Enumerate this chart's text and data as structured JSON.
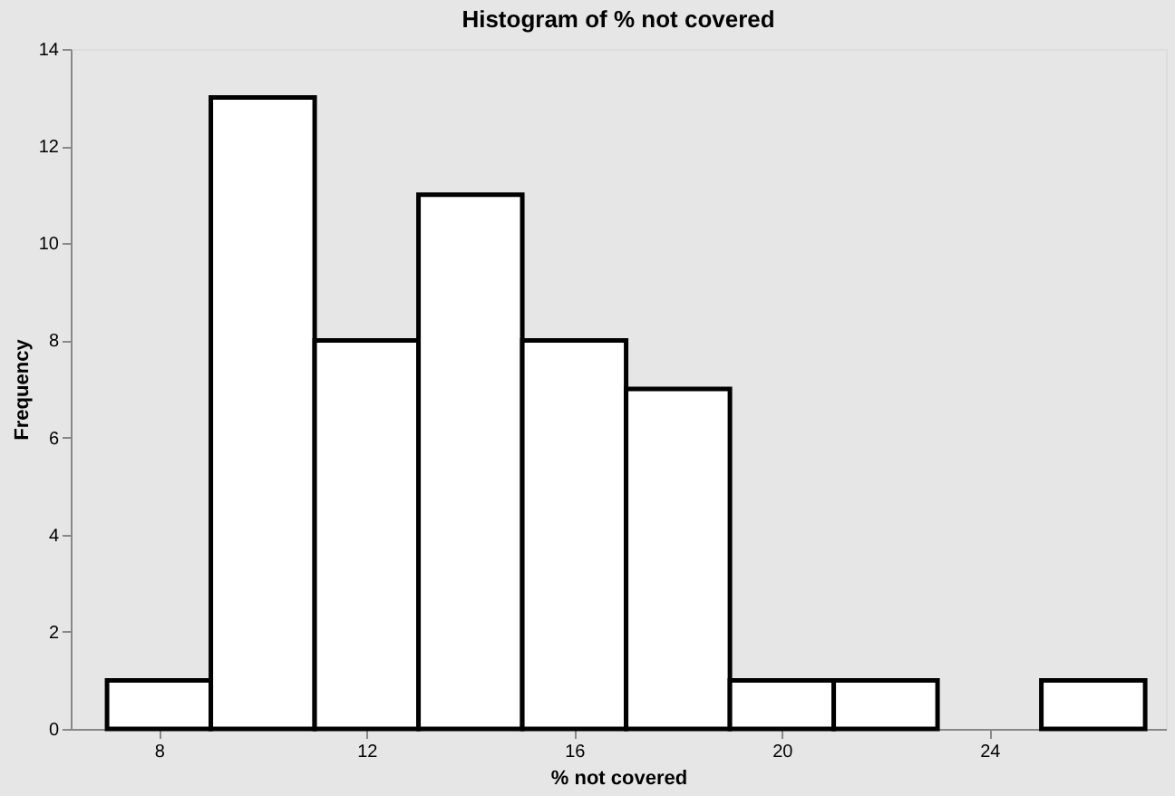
{
  "chart_data": {
    "type": "histogram",
    "title": "Histogram of % not covered",
    "xlabel": "% not covered",
    "ylabel": "Frequency",
    "bins": [
      7,
      9,
      11,
      13,
      15,
      17,
      19,
      21,
      23,
      25,
      27
    ],
    "values": [
      1,
      13,
      8,
      11,
      8,
      7,
      1,
      1,
      0,
      1
    ],
    "color": "#ffffff",
    "xlim": [
      6.3,
      27.4
    ],
    "xticks": [
      8,
      12,
      16,
      20,
      24
    ],
    "ylim": [
      0,
      14
    ],
    "yticks": [
      0,
      2,
      4,
      6,
      8,
      10,
      12,
      14
    ],
    "grid": false
  }
}
